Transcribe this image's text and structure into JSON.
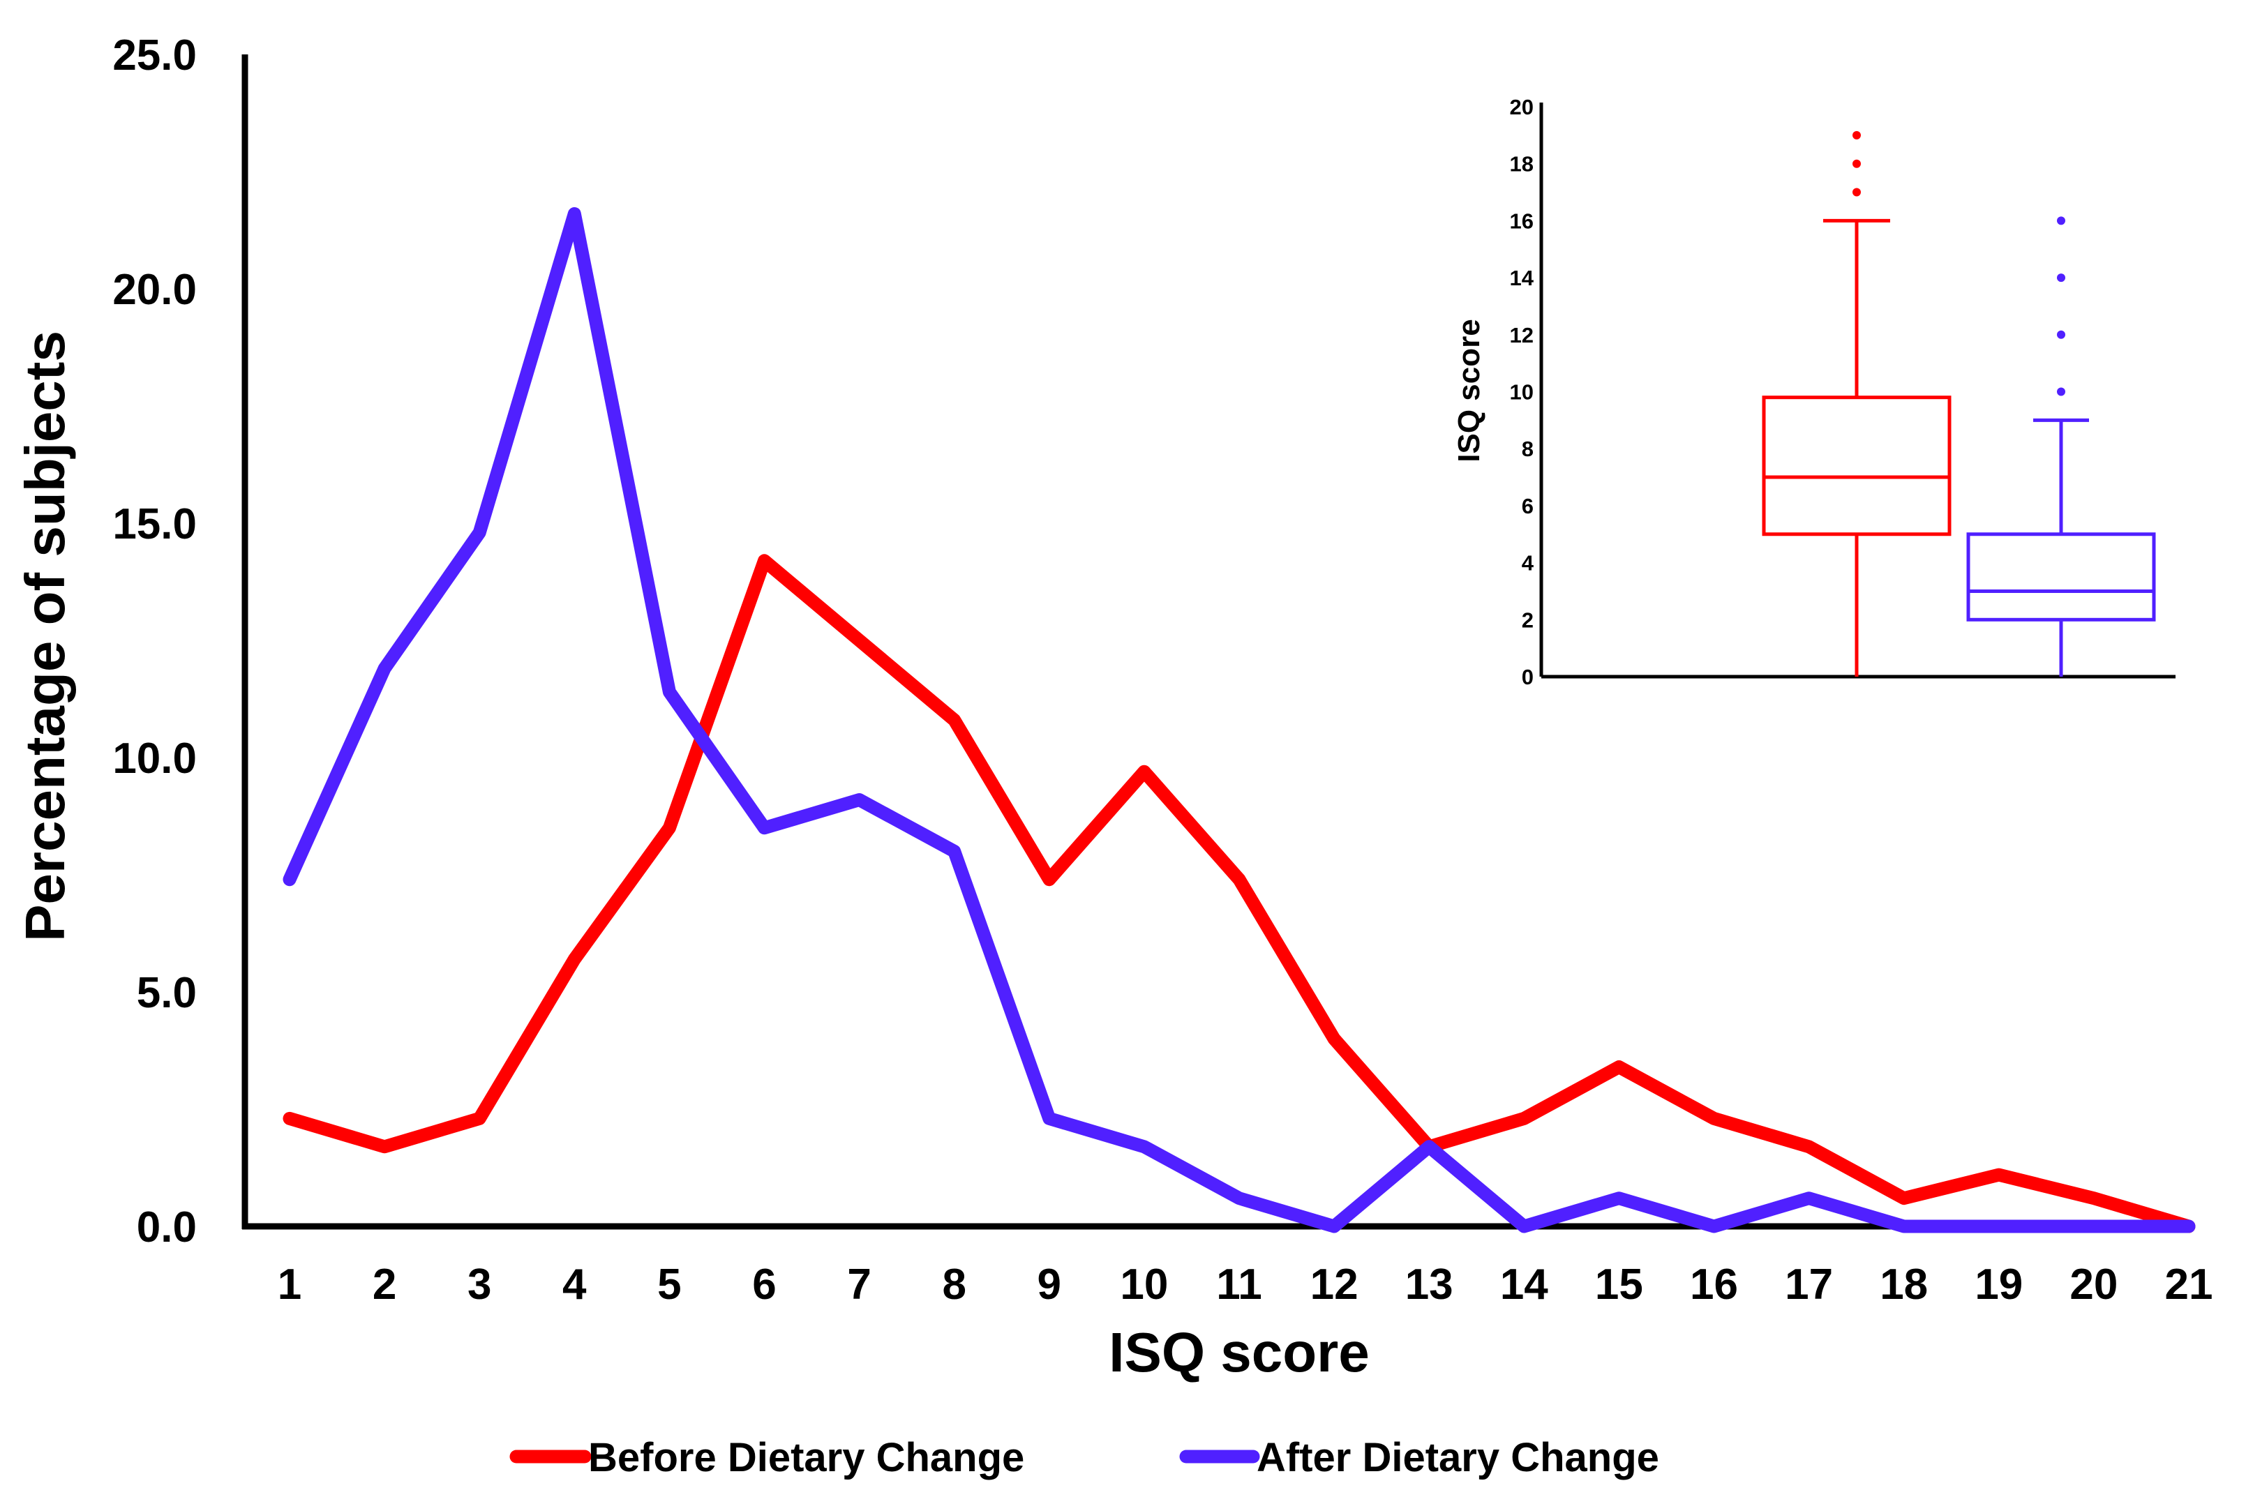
{
  "chart_data": [
    {
      "type": "line",
      "xlabel": "ISQ score",
      "ylabel": "Percentage of subjects",
      "x": [
        1,
        2,
        3,
        4,
        5,
        6,
        7,
        8,
        9,
        10,
        11,
        12,
        13,
        14,
        15,
        16,
        17,
        18,
        19,
        20,
        21
      ],
      "x_tick_labels": [
        "1",
        "2",
        "3",
        "4",
        "5",
        "6",
        "7",
        "8",
        "9",
        "10",
        "11",
        "12",
        "13",
        "14",
        "15",
        "16",
        "17",
        "18",
        "19",
        "20",
        "21"
      ],
      "ylim": [
        0,
        25
      ],
      "y_tick_labels": [
        "0.0",
        "5.0",
        "10.0",
        "15.0",
        "20.0",
        "25.0"
      ],
      "y_ticks": [
        0,
        5,
        10,
        15,
        20,
        25
      ],
      "grid": false,
      "legend_position": "bottom",
      "series": [
        {
          "name": "Before Dietary Change",
          "color": "#ff0000",
          "values": [
            2.3,
            1.7,
            2.3,
            5.7,
            8.5,
            14.2,
            12.5,
            10.8,
            7.4,
            9.7,
            7.4,
            4.0,
            1.7,
            2.3,
            3.4,
            2.3,
            1.7,
            0.6,
            1.1,
            0.6,
            0.0
          ]
        },
        {
          "name": "After Dietary Change",
          "color": "#5020ff",
          "values": [
            7.4,
            11.9,
            14.8,
            21.6,
            11.4,
            8.5,
            9.1,
            8.0,
            2.3,
            1.7,
            0.6,
            0.0,
            1.7,
            0.0,
            0.6,
            0.0,
            0.6,
            0.0,
            0.0,
            0.0,
            0.0
          ]
        }
      ]
    },
    {
      "type": "box",
      "ylabel": "ISQ score",
      "ylim": [
        0,
        20
      ],
      "y_ticks": [
        0,
        2,
        4,
        6,
        8,
        10,
        12,
        14,
        16,
        18,
        20
      ],
      "y_tick_labels": [
        "0",
        "2",
        "4",
        "6",
        "8",
        "10",
        "12",
        "14",
        "16",
        "18",
        "20"
      ],
      "boxes": [
        {
          "color": "#ff0000",
          "whisker_low": 0,
          "q1": 5,
          "median": 7,
          "q3": 9.8,
          "whisker_high": 16,
          "outliers": [
            17,
            18,
            19
          ]
        },
        {
          "color": "#5020ff",
          "whisker_low": 0,
          "q1": 2,
          "median": 3,
          "q3": 5,
          "whisker_high": 9,
          "outliers": [
            10,
            12,
            14,
            16
          ]
        }
      ]
    }
  ]
}
